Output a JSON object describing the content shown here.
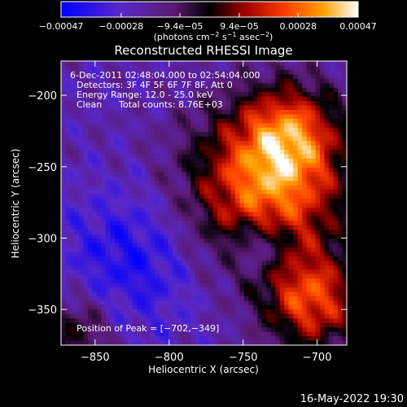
{
  "chart_data": {
    "type": "heatmap",
    "title": "Reconstructed RHESSI Image",
    "xlabel": "Heliocentric X (arcsec)",
    "ylabel": "Heliocentric Y (arcsec)",
    "xlim": [
      -873,
      -680
    ],
    "ylim": [
      -375,
      -176
    ],
    "xticks": [
      {
        "value": -850,
        "label": "−850"
      },
      {
        "value": -800,
        "label": "−800"
      },
      {
        "value": -750,
        "label": "−750"
      },
      {
        "value": -700,
        "label": "−700"
      }
    ],
    "yticks": [
      {
        "value": -200,
        "label": "−200"
      },
      {
        "value": -250,
        "label": "−250"
      },
      {
        "value": -300,
        "label": "−300"
      },
      {
        "value": -350,
        "label": "−350"
      }
    ],
    "colorbar": {
      "range": [
        -0.00047,
        0.00047
      ],
      "ticks": [
        {
          "value": -0.00047,
          "label": "−0.00047"
        },
        {
          "value": -0.00028,
          "label": "−0.00028"
        },
        {
          "value": -9.4e-05,
          "label": "−9.4e−05"
        },
        {
          "value": 9.4e-05,
          "label": "9.4e−05"
        },
        {
          "value": 0.00028,
          "label": "0.00028"
        },
        {
          "value": 0.00047,
          "label": "0.00047"
        }
      ],
      "units_text": "(photons cm",
      "units_exp1": "−2",
      "units_mid": " s",
      "units_exp2": "−1",
      "units_end": " asec",
      "units_exp3": "−2",
      "units_close": ")"
    },
    "annotations": {
      "time_range": "6-Dec-2011 02:48:04.000 to 02:54:04.000",
      "detectors": "Detectors: 3F 4F 5F 6F 7F 8F, Att 0",
      "energy": "Energy Range: 12.0 - 25.0 keV",
      "clean": "Clean",
      "total_counts": "Total counts: 8.76E+03",
      "peak": "Position of Peak = [−702,−349]"
    },
    "peak_position": [
      -702,
      -349
    ],
    "grid": false,
    "colors": {
      "background": "#000000",
      "foreground": "#ffffff",
      "colormap": [
        "#0000ff",
        "#7030a0",
        "#000000",
        "#c00000",
        "#ff7000",
        "#ffe040",
        "#ffffff"
      ]
    }
  },
  "footer": {
    "timestamp": "16-May-2022 19:30"
  }
}
